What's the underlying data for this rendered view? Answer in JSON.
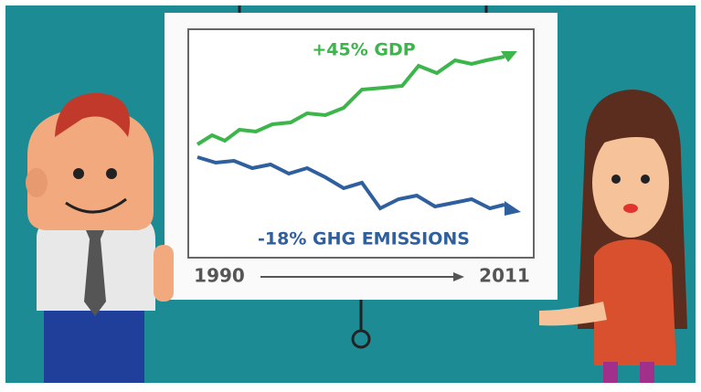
{
  "board": {
    "gdp_label": "+45% GDP",
    "ghg_label": "-18% GHG EMISSIONS",
    "start_year": "1990",
    "end_year": "2011"
  }
}
